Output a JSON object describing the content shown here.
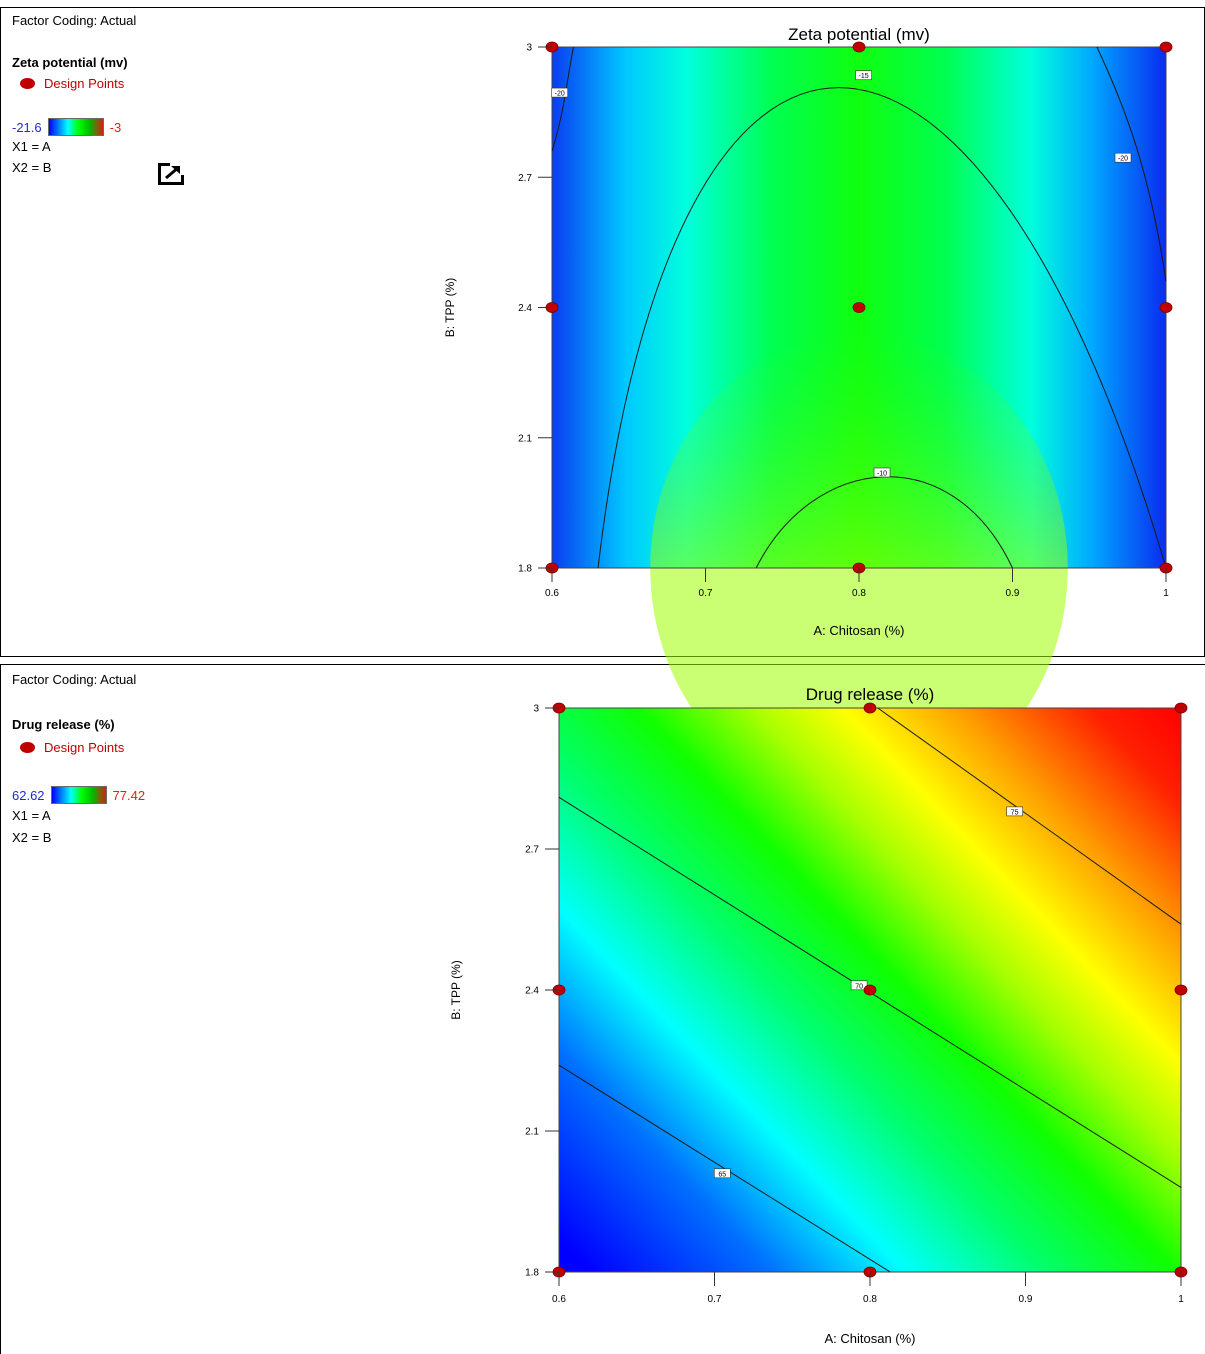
{
  "panels": [
    {
      "factor_coding": "Factor Coding: Actual",
      "response": "Zeta potential (mv)",
      "design_points": "Design Points",
      "range_low": "-21.6",
      "range_high": "-3",
      "x1": "X1 = A",
      "x2": "X2 = B"
    },
    {
      "factor_coding": "Factor Coding: Actual",
      "response": "Drug release (%)",
      "design_points": "Design Points",
      "range_low": "62.62",
      "range_high": "77.42",
      "x1": "X1 = A",
      "x2": "X2 = B"
    }
  ],
  "popout_icon": "external-link-icon",
  "colors": {
    "design_point": "#c00000",
    "low": "#0000ff",
    "mid": "#00ff00",
    "high": "#ff0000"
  },
  "chart_data": [
    {
      "type": "heatmap",
      "title": "Zeta potential (mv)",
      "xlabel": "A: Chitosan (%)",
      "ylabel": "B: TPP (%)",
      "xlim": [
        0.6,
        1
      ],
      "ylim": [
        1.8,
        3
      ],
      "x_ticks": [
        "0.6",
        "0.7",
        "0.8",
        "0.9",
        "1"
      ],
      "y_ticks": [
        "1.8",
        "2.1",
        "2.4",
        "2.7",
        "3"
      ],
      "color_range": [
        -21.6,
        -3
      ],
      "contours": [
        "-20",
        "-15",
        "-10",
        "-20"
      ],
      "design_points": [
        {
          "x": 0.6,
          "y": 1.8
        },
        {
          "x": 0.8,
          "y": 1.8
        },
        {
          "x": 1,
          "y": 1.8
        },
        {
          "x": 0.6,
          "y": 2.4
        },
        {
          "x": 0.8,
          "y": 2.4
        },
        {
          "x": 1,
          "y": 2.4
        },
        {
          "x": 0.6,
          "y": 3
        },
        {
          "x": 0.8,
          "y": 3
        },
        {
          "x": 1,
          "y": 3
        }
      ]
    },
    {
      "type": "heatmap",
      "title": "Drug release (%)",
      "xlabel": "A: Chitosan (%)",
      "ylabel": "B: TPP (%)",
      "xlim": [
        0.6,
        1
      ],
      "ylim": [
        1.8,
        3
      ],
      "x_ticks": [
        "0.6",
        "0.7",
        "0.8",
        "0.9",
        "1"
      ],
      "y_ticks": [
        "1.8",
        "2.1",
        "2.4",
        "2.7",
        "3"
      ],
      "color_range": [
        62.62,
        77.42
      ],
      "contours": [
        "65",
        "70",
        "75"
      ],
      "design_points": [
        {
          "x": 0.6,
          "y": 1.8
        },
        {
          "x": 0.8,
          "y": 1.8
        },
        {
          "x": 1,
          "y": 1.8
        },
        {
          "x": 0.6,
          "y": 2.4
        },
        {
          "x": 0.8,
          "y": 2.4
        },
        {
          "x": 1,
          "y": 2.4
        },
        {
          "x": 0.6,
          "y": 3
        },
        {
          "x": 0.8,
          "y": 3
        },
        {
          "x": 1,
          "y": 3
        }
      ]
    }
  ]
}
